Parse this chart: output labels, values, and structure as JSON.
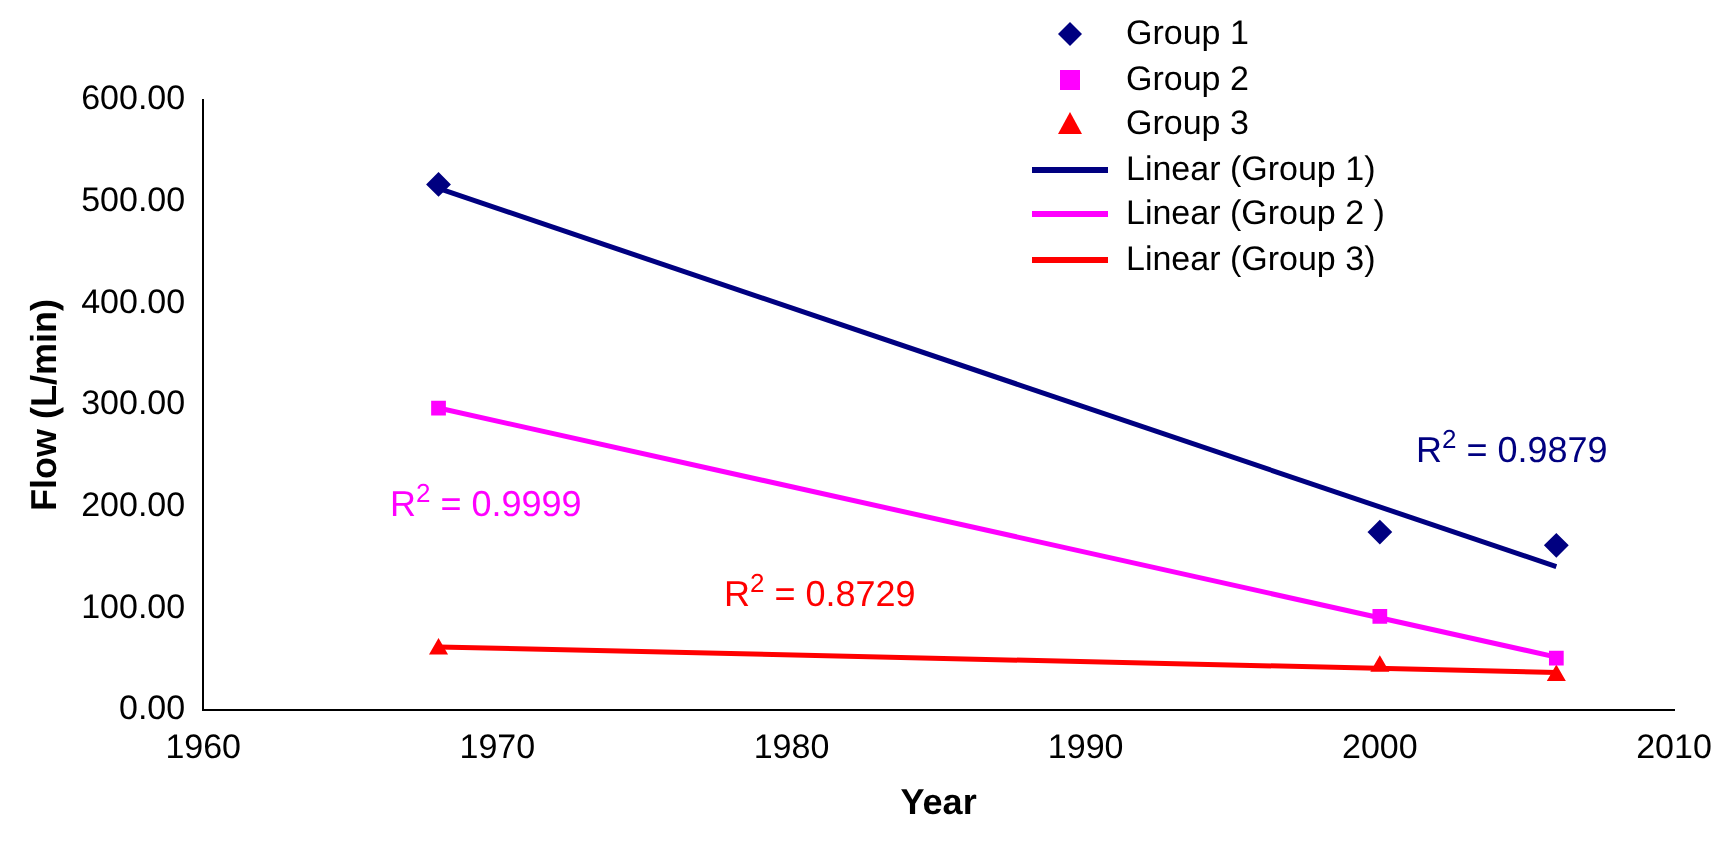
{
  "chart_data": {
    "type": "scatter",
    "xlabel": "Year",
    "ylabel": "Flow (L/min)",
    "xlim": [
      1960,
      2010
    ],
    "xticks": [
      1960,
      1970,
      1980,
      1990,
      2000,
      2010
    ],
    "ylim": [
      0,
      600
    ],
    "yticks": [
      {
        "value": 0,
        "label": "0.00"
      },
      {
        "value": 100,
        "label": "100.00"
      },
      {
        "value": 200,
        "label": "200.00"
      },
      {
        "value": 300,
        "label": "300.00"
      },
      {
        "value": 400,
        "label": "400.00"
      },
      {
        "value": 500,
        "label": "500.00"
      },
      {
        "value": 600,
        "label": "600.00"
      }
    ],
    "grid": false,
    "legend": "top right",
    "series": [
      {
        "name": "Group 1",
        "marker": "diamond",
        "color": "#000080",
        "x": [
          1968,
          2000,
          2006
        ],
        "values": [
          517,
          175,
          162
        ]
      },
      {
        "name": "Group 2",
        "marker": "square",
        "color": "#ff00ff",
        "x": [
          1968,
          2000,
          2006
        ],
        "values": [
          297,
          92,
          51
        ]
      },
      {
        "name": "Group 3",
        "marker": "triangle",
        "color": "#ff0000",
        "x": [
          1968,
          2000,
          2006
        ],
        "values": [
          60,
          43,
          34
        ]
      },
      {
        "name": "Linear (Group 1)",
        "type": "line",
        "marker": "none",
        "color": "#000080",
        "x": [
          1968,
          2006
        ],
        "values": [
          513,
          141
        ]
      },
      {
        "name": "Linear (Group 2 )",
        "type": "line",
        "marker": "none",
        "color": "#ff00ff",
        "x": [
          1968,
          2006
        ],
        "values": [
          297,
          52
        ]
      },
      {
        "name": "Linear (Group 3)",
        "type": "line",
        "marker": "none",
        "color": "#ff0000",
        "x": [
          1968,
          2006
        ],
        "values": [
          62,
          37
        ]
      }
    ],
    "annotations": [
      "R$^{2}$ = 0.9879",
      "R$^{2}$ = 0.9999",
      "R$^{2}$ = 0.8729"
    ]
  }
}
